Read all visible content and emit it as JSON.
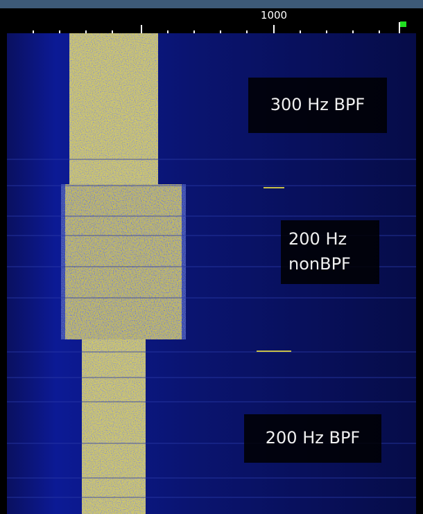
{
  "scale": {
    "label": "1000"
  },
  "annotations": [
    {
      "lines": [
        "300 Hz BPF"
      ]
    },
    {
      "lines": [
        "200 Hz",
        "nonBPF"
      ]
    },
    {
      "lines": [
        "200 Hz BPF"
      ]
    }
  ]
}
